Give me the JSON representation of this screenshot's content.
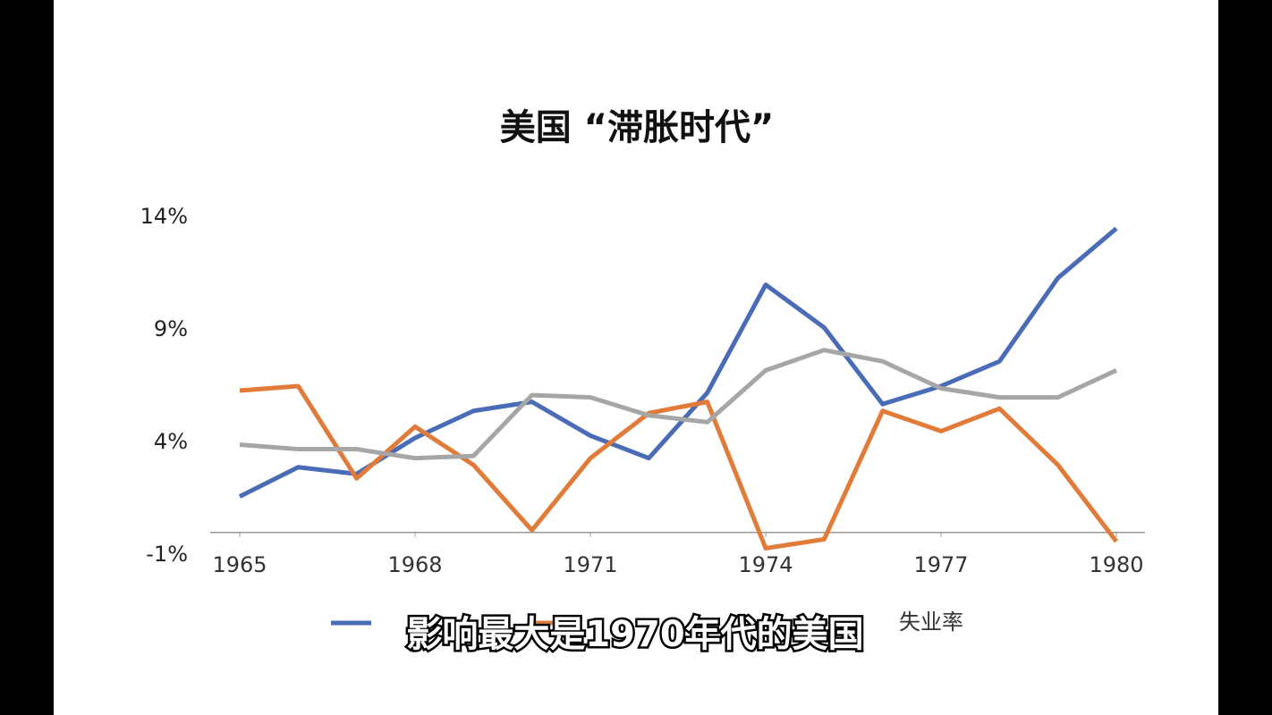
{
  "chart_data": {
    "type": "line",
    "title": "美国 “滞胀时代”",
    "x": [
      1965,
      1966,
      1967,
      1968,
      1969,
      1970,
      1971,
      1972,
      1973,
      1974,
      1975,
      1976,
      1977,
      1978,
      1979,
      1980
    ],
    "xlim": [
      1965,
      1980
    ],
    "xticks": [
      1965,
      1968,
      1971,
      1974,
      1977,
      1980
    ],
    "ylim": [
      -1,
      14
    ],
    "yticks": [
      {
        "value": -1,
        "label": "-1%"
      },
      {
        "value": 4,
        "label": "4%"
      },
      {
        "value": 9,
        "label": "9%"
      },
      {
        "value": 14,
        "label": "14%"
      }
    ],
    "grid": false,
    "series": [
      {
        "color": "#4a6bb5",
        "values": [
          1.6,
          2.9,
          2.6,
          4.2,
          5.4,
          5.8,
          4.3,
          3.3,
          6.2,
          11.0,
          9.1,
          5.7,
          6.5,
          7.6,
          11.3,
          13.5
        ]
      },
      {
        "color": "#e07b39",
        "values": [
          6.3,
          6.5,
          2.4,
          4.7,
          3.0,
          0.1,
          3.3,
          5.3,
          5.8,
          -0.7,
          -0.3,
          5.4,
          4.5,
          5.5,
          3.0,
          -0.4
        ]
      },
      {
        "name": "失业率",
        "color": "#a6a6a6",
        "values": [
          3.9,
          3.7,
          3.7,
          3.3,
          3.4,
          6.1,
          6.0,
          5.2,
          4.9,
          7.2,
          8.1,
          7.6,
          6.4,
          6.0,
          6.0,
          7.2
        ]
      }
    ],
    "caption": "影响最大是1970年代的美国"
  }
}
